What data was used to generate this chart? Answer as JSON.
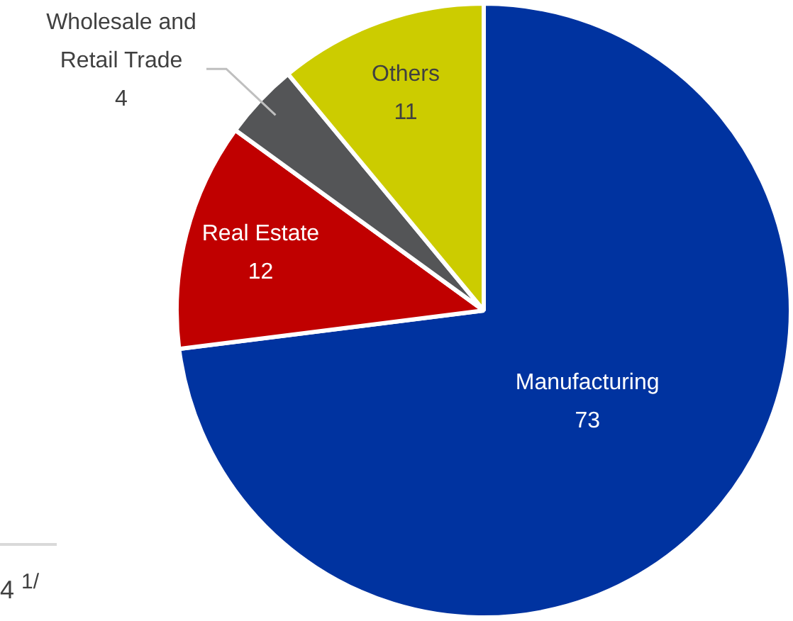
{
  "chart_data": {
    "type": "pie",
    "categories": [
      "Manufacturing",
      "Real Estate",
      "Wholesale and Retail Trade",
      "Others"
    ],
    "values": [
      73,
      12,
      4,
      11
    ],
    "colors": [
      "#0033a0",
      "#c00000",
      "#545557",
      "#cccc00"
    ],
    "data_labels": true,
    "legend": false,
    "annotations": [
      "4 $^{1/}$"
    ]
  }
}
